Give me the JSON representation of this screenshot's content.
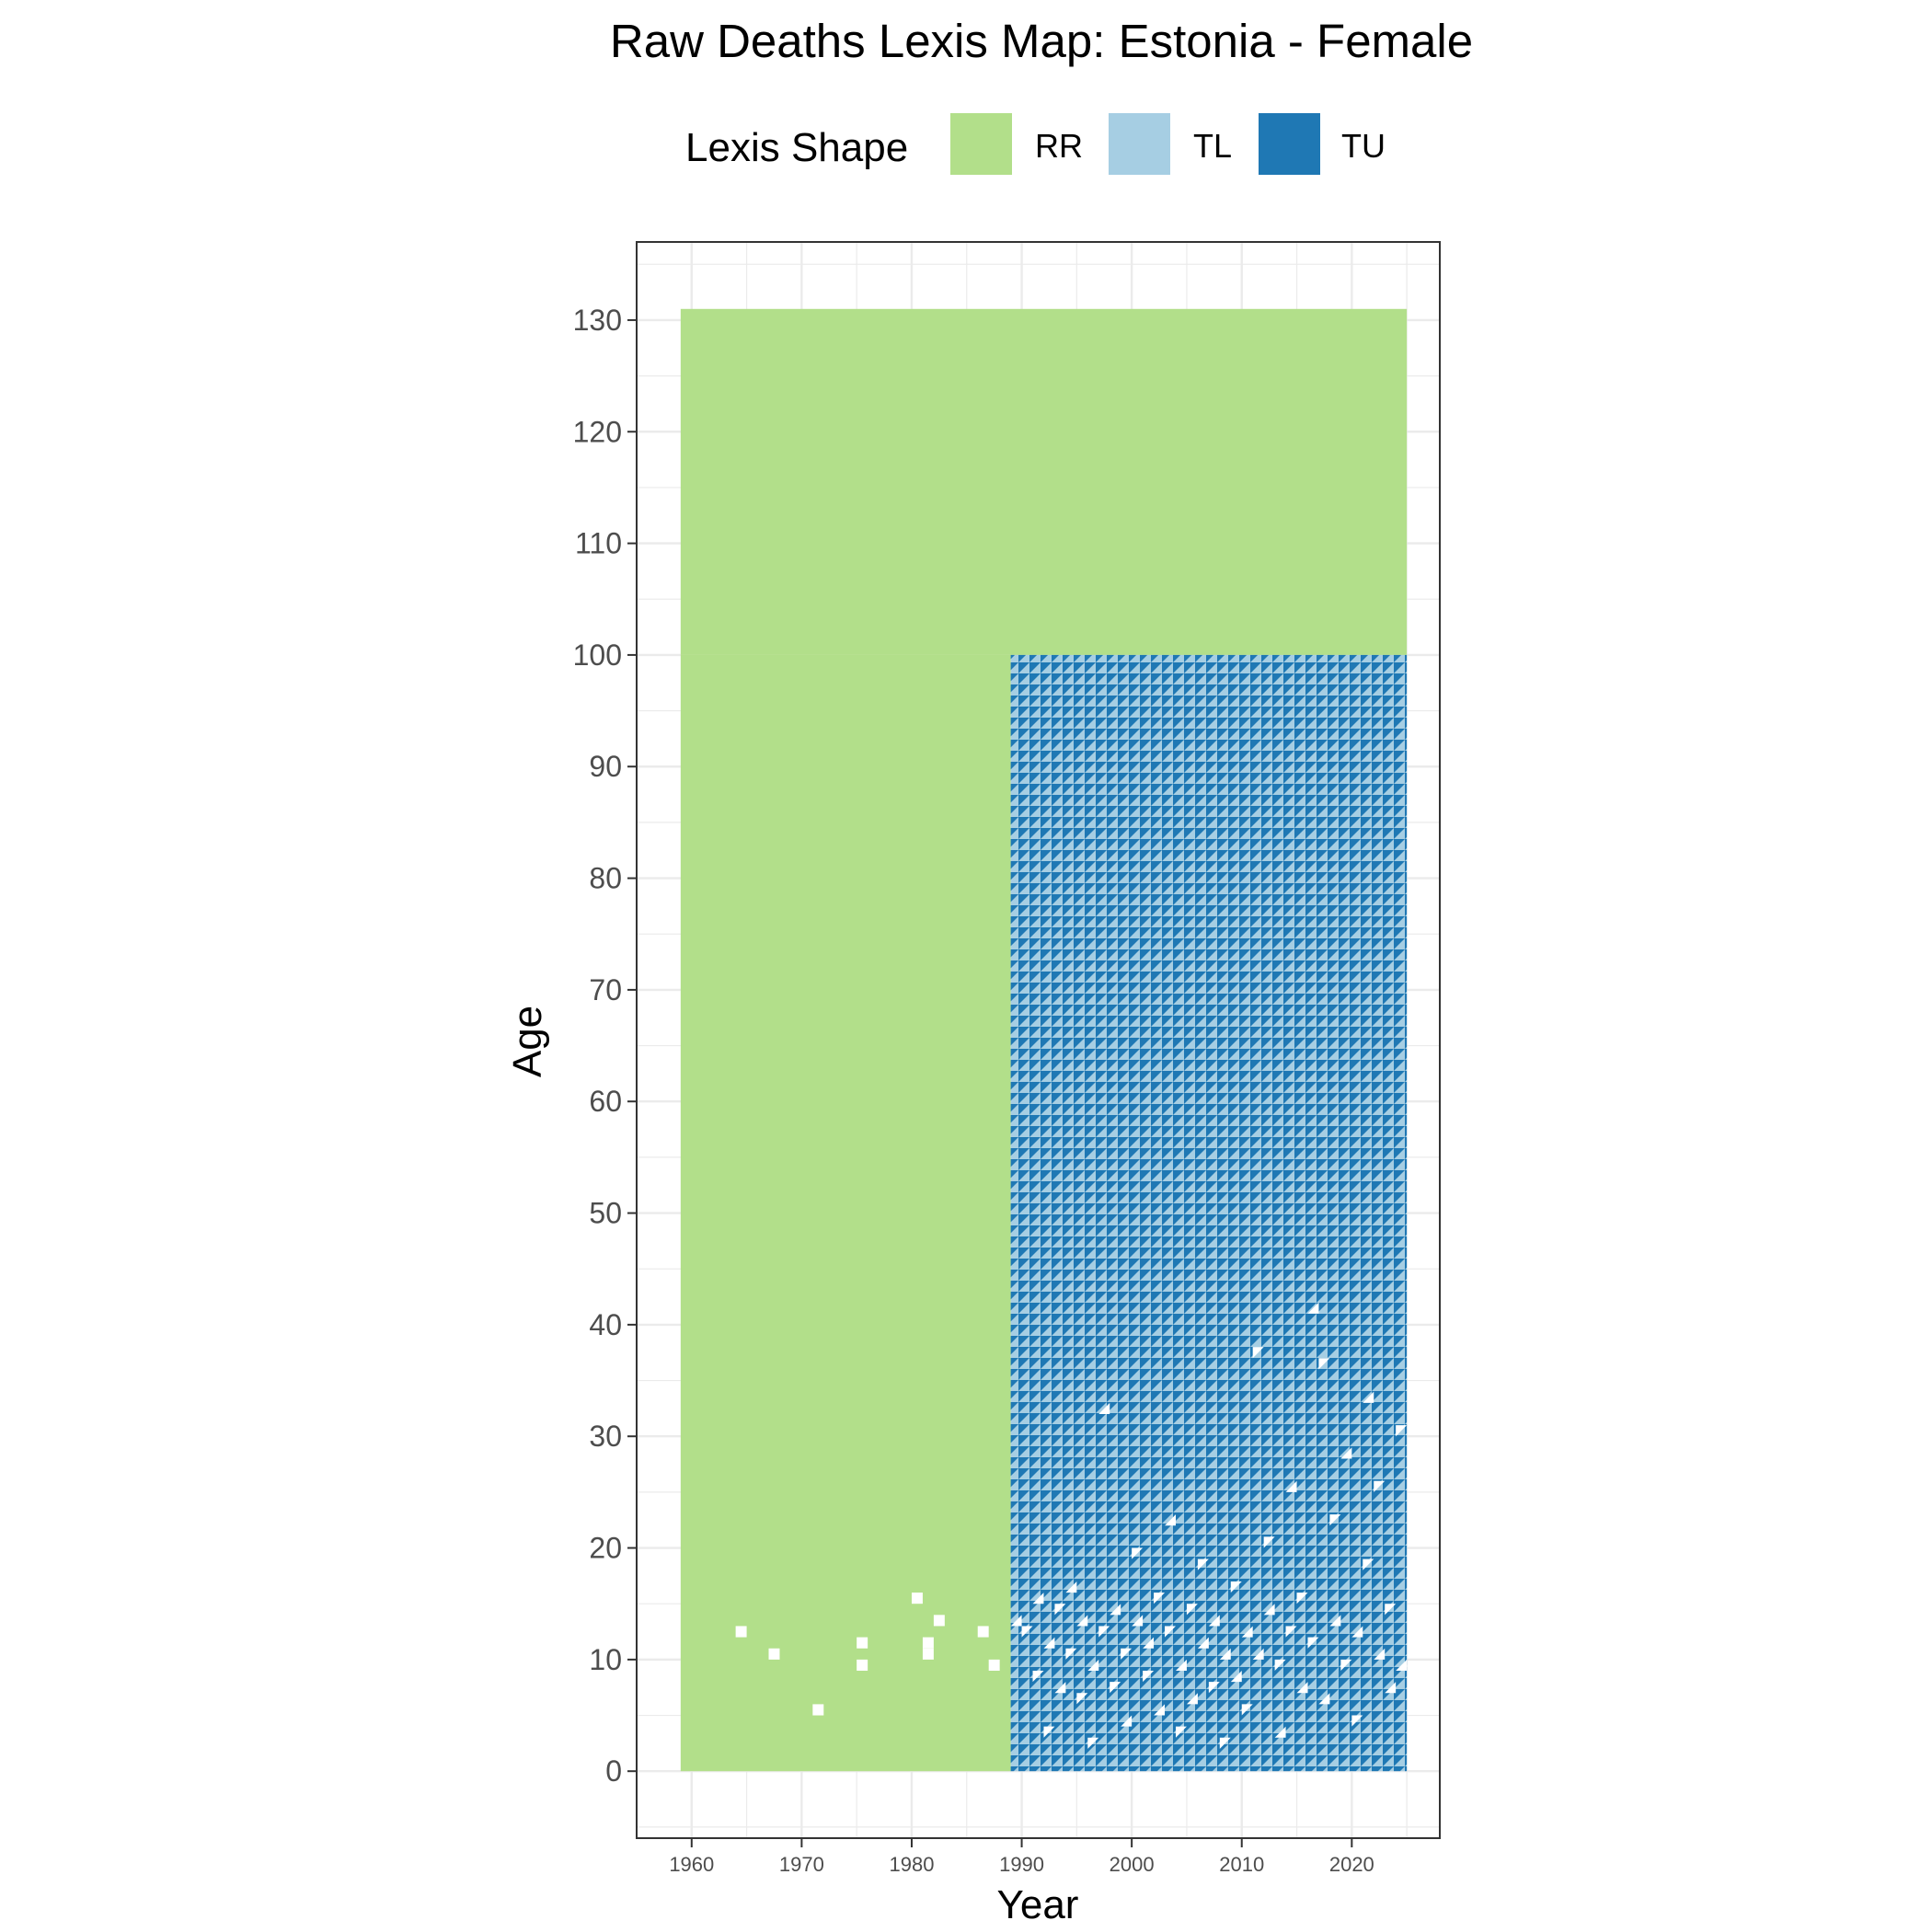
{
  "chart_data": {
    "type": "heatmap",
    "title": "Raw Deaths Lexis Map: Estonia - Female",
    "xlabel": "Year",
    "ylabel": "Age",
    "xlim": [
      1955,
      2028
    ],
    "ylim": [
      -6,
      137
    ],
    "x_ticks": [
      "1960",
      "1970",
      "1980",
      "1990",
      "2000",
      "2010",
      "2020"
    ],
    "x_tick_values": [
      1960,
      1970,
      1980,
      1990,
      2000,
      2010,
      2020
    ],
    "y_ticks": [
      "0",
      "10",
      "20",
      "30",
      "40",
      "50",
      "60",
      "70",
      "80",
      "90",
      "100",
      "110",
      "120",
      "130"
    ],
    "y_tick_values": [
      0,
      10,
      20,
      30,
      40,
      50,
      60,
      70,
      80,
      90,
      100,
      110,
      120,
      130
    ],
    "grid": true,
    "legend": {
      "title": "Lexis Shape",
      "position": "top",
      "entries": [
        {
          "label": "RR",
          "color": "#b2df8a"
        },
        {
          "label": "TL",
          "color": "#a6cee3"
        },
        {
          "label": "TU",
          "color": "#1f78b4"
        }
      ]
    },
    "regions": [
      {
        "shape": "RR",
        "year_from": 1959,
        "year_to": 2025,
        "age_from": 100,
        "age_to": 131
      },
      {
        "shape": "RR",
        "year_from": 1959,
        "year_to": 1989,
        "age_from": 0,
        "age_to": 100
      },
      {
        "shape": "TL+TU",
        "year_from": 1989,
        "year_to": 2025,
        "age_from": 0,
        "age_to": 100
      }
    ],
    "missing_rr_cells": [
      [
        1964,
        12
      ],
      [
        1967,
        10
      ],
      [
        1971,
        5
      ],
      [
        1975,
        11
      ],
      [
        1975,
        9
      ],
      [
        1980,
        15
      ],
      [
        1981,
        11
      ],
      [
        1981,
        10
      ],
      [
        1982,
        13
      ],
      [
        1986,
        12
      ],
      [
        1987,
        9
      ]
    ],
    "missing_triangle_cells": [
      [
        1989,
        13,
        "TL"
      ],
      [
        1990,
        12,
        "TU"
      ],
      [
        1991,
        15,
        "TL"
      ],
      [
        1991,
        8,
        "TU"
      ],
      [
        1992,
        11,
        "TL"
      ],
      [
        1992,
        3,
        "TU"
      ],
      [
        1993,
        14,
        "TU"
      ],
      [
        1993,
        7,
        "TL"
      ],
      [
        1994,
        10,
        "TU"
      ],
      [
        1994,
        16,
        "TL"
      ],
      [
        1995,
        13,
        "TL"
      ],
      [
        1995,
        6,
        "TU"
      ],
      [
        1996,
        9,
        "TL"
      ],
      [
        1996,
        2,
        "TU"
      ],
      [
        1997,
        12,
        "TU"
      ],
      [
        1997,
        32,
        "TL"
      ],
      [
        1998,
        14,
        "TL"
      ],
      [
        1998,
        7,
        "TU"
      ],
      [
        1999,
        10,
        "TU"
      ],
      [
        1999,
        4,
        "TL"
      ],
      [
        2000,
        13,
        "TL"
      ],
      [
        2000,
        19,
        "TU"
      ],
      [
        2001,
        8,
        "TU"
      ],
      [
        2001,
        11,
        "TL"
      ],
      [
        2002,
        5,
        "TL"
      ],
      [
        2002,
        15,
        "TU"
      ],
      [
        2003,
        12,
        "TU"
      ],
      [
        2003,
        22,
        "TL"
      ],
      [
        2004,
        9,
        "TL"
      ],
      [
        2004,
        3,
        "TU"
      ],
      [
        2005,
        14,
        "TU"
      ],
      [
        2005,
        6,
        "TL"
      ],
      [
        2006,
        11,
        "TL"
      ],
      [
        2006,
        18,
        "TU"
      ],
      [
        2007,
        7,
        "TU"
      ],
      [
        2007,
        13,
        "TL"
      ],
      [
        2008,
        10,
        "TL"
      ],
      [
        2008,
        2,
        "TU"
      ],
      [
        2009,
        16,
        "TU"
      ],
      [
        2009,
        8,
        "TL"
      ],
      [
        2010,
        12,
        "TL"
      ],
      [
        2010,
        5,
        "TU"
      ],
      [
        2011,
        37,
        "TU"
      ],
      [
        2011,
        10,
        "TL"
      ],
      [
        2012,
        14,
        "TL"
      ],
      [
        2012,
        20,
        "TU"
      ],
      [
        2013,
        9,
        "TU"
      ],
      [
        2013,
        3,
        "TL"
      ],
      [
        2014,
        12,
        "TU"
      ],
      [
        2014,
        25,
        "TL"
      ],
      [
        2015,
        7,
        "TL"
      ],
      [
        2015,
        15,
        "TU"
      ],
      [
        2016,
        41,
        "TL"
      ],
      [
        2016,
        11,
        "TU"
      ],
      [
        2017,
        36,
        "TU"
      ],
      [
        2017,
        6,
        "TL"
      ],
      [
        2018,
        13,
        "TL"
      ],
      [
        2018,
        22,
        "TU"
      ],
      [
        2019,
        9,
        "TU"
      ],
      [
        2019,
        28,
        "TL"
      ],
      [
        2020,
        12,
        "TL"
      ],
      [
        2020,
        4,
        "TU"
      ],
      [
        2021,
        18,
        "TU"
      ],
      [
        2021,
        33,
        "TL"
      ],
      [
        2022,
        10,
        "TL"
      ],
      [
        2022,
        25,
        "TU"
      ],
      [
        2023,
        14,
        "TU"
      ],
      [
        2023,
        7,
        "TL"
      ],
      [
        2024,
        9,
        "TL"
      ],
      [
        2024,
        30,
        "TU"
      ]
    ]
  }
}
